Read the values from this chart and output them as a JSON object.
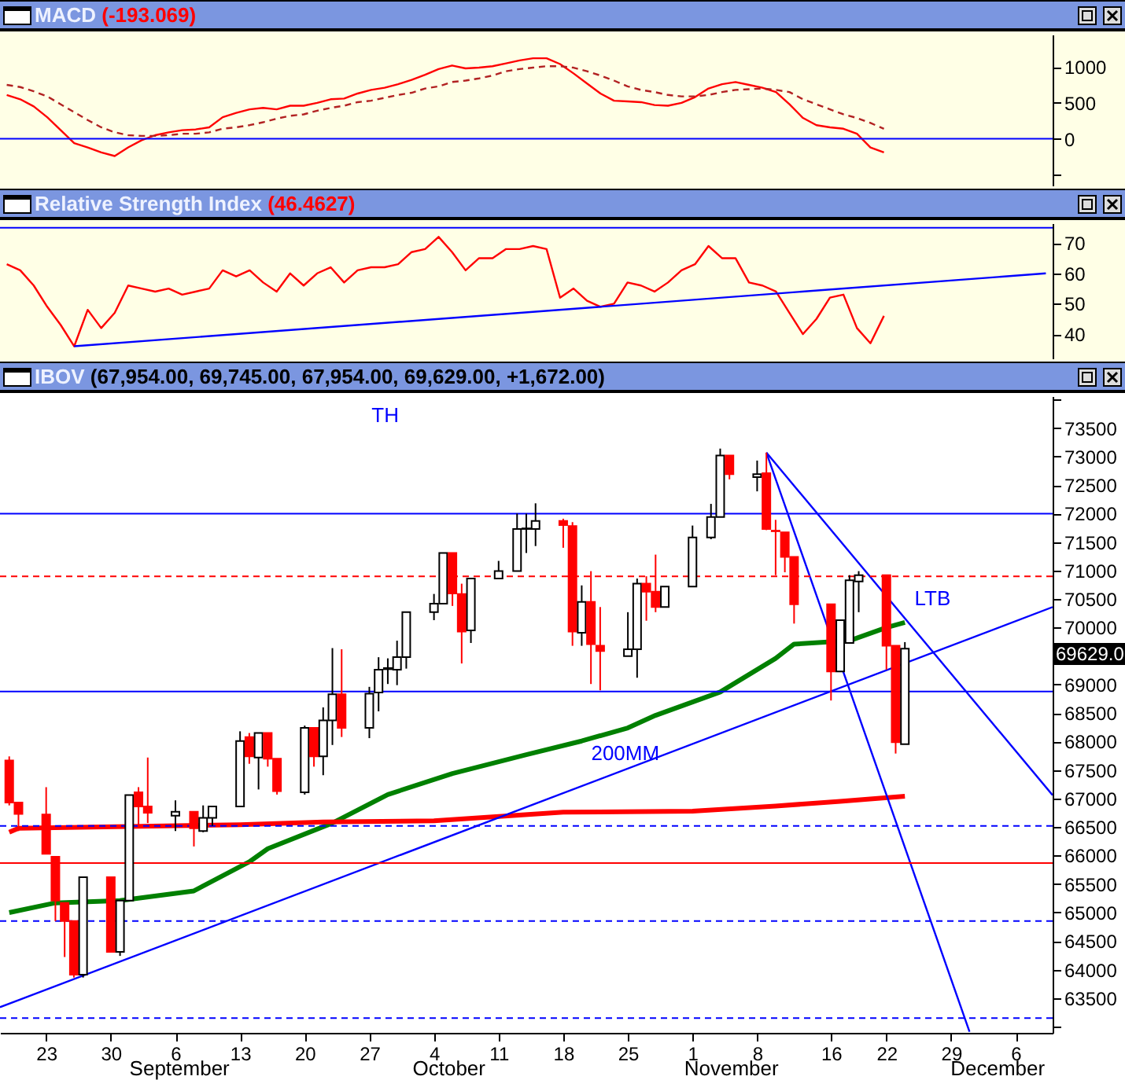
{
  "chart_data": [
    {
      "type": "line",
      "title": "MACD",
      "subtitle": "(-193.069)",
      "ylim": [
        -650,
        1450
      ],
      "yticks": [
        {
          "value": -500,
          "label": null
        },
        0,
        500,
        1000
      ],
      "tick_labels": "y",
      "ref_lines": [
        {
          "axis": "y",
          "value": 0,
          "color": "#0000ff"
        }
      ],
      "categories": [
        null,
        null,
        null,
        null,
        null,
        null,
        null,
        null,
        null,
        null,
        null,
        null,
        null,
        null,
        null,
        null,
        null,
        null,
        null,
        null,
        null,
        null,
        null,
        null,
        null,
        null,
        null,
        null,
        null,
        null,
        null,
        null,
        null,
        null,
        null,
        null,
        null,
        null,
        null,
        null,
        null,
        null,
        null,
        null,
        null,
        null,
        null,
        null,
        null,
        null,
        null,
        null,
        null,
        null,
        null,
        null,
        null,
        null,
        null,
        null,
        null,
        null,
        null,
        null,
        null,
        null,
        null,
        null,
        null,
        null,
        null,
        null,
        null,
        null,
        null,
        null,
        null,
        null
      ],
      "series": [
        {
          "color": "#ff0000",
          "values": [
            610,
            550,
            450,
            300,
            120,
            -60,
            -120,
            -190,
            -240,
            -120,
            -20,
            50,
            90,
            120,
            130,
            160,
            300,
            360,
            410,
            430,
            410,
            460,
            460,
            500,
            550,
            560,
            630,
            680,
            710,
            760,
            820,
            890,
            970,
            1020,
            980,
            990,
            1010,
            1050,
            1090,
            1120,
            1120,
            1040,
            910,
            770,
            630,
            530,
            520,
            510,
            470,
            460,
            500,
            580,
            700,
            760,
            790,
            750,
            710,
            650,
            480,
            290,
            190,
            160,
            140,
            70,
            -120,
            -190,
            null,
            null,
            null,
            null,
            null,
            null,
            null,
            null,
            null,
            null,
            null,
            null
          ]
        },
        {
          "color": "#b22222",
          "line_style": "dashed",
          "values": [
            750,
            720,
            660,
            590,
            480,
            370,
            260,
            160,
            90,
            50,
            40,
            40,
            50,
            70,
            70,
            90,
            140,
            160,
            190,
            230,
            280,
            320,
            340,
            390,
            430,
            460,
            510,
            530,
            570,
            610,
            640,
            700,
            730,
            790,
            810,
            840,
            880,
            940,
            970,
            990,
            1010,
            1010,
            990,
            940,
            880,
            810,
            730,
            680,
            650,
            610,
            590,
            590,
            610,
            650,
            680,
            690,
            700,
            680,
            650,
            550,
            480,
            410,
            340,
            290,
            220,
            140,
            null,
            null,
            null,
            null,
            null,
            null,
            null,
            null,
            null,
            null,
            null,
            null
          ]
        }
      ]
    },
    {
      "type": "line",
      "title": "Relative Strength Index",
      "subtitle": "(46.4627)",
      "ylim": [
        32,
        76.5
      ],
      "yticks": [
        40,
        50,
        60,
        70
      ],
      "tick_labels": "y",
      "ref_lines": [
        {
          "axis": "y",
          "value": 75,
          "color": "#0000ff"
        }
      ],
      "categories": [
        null,
        null,
        null,
        null,
        null,
        null,
        null,
        null,
        null,
        null,
        null,
        null,
        null,
        null,
        null,
        null,
        null,
        null,
        null,
        null,
        null,
        null,
        null,
        null,
        null,
        null,
        null,
        null,
        null,
        null,
        null,
        null,
        null,
        null,
        null,
        null,
        null,
        null,
        null,
        null,
        null,
        null,
        null,
        null,
        null,
        null,
        null,
        null,
        null,
        null,
        null,
        null,
        null,
        null,
        null,
        null,
        null,
        null,
        null,
        null,
        null,
        null,
        null,
        null,
        null,
        null,
        null,
        null,
        null,
        null,
        null,
        null,
        null,
        null,
        null,
        null,
        null,
        null
      ],
      "series": [
        {
          "color": "#ff0000",
          "values": [
            63,
            61,
            56,
            49,
            43,
            36,
            48,
            42,
            47,
            56,
            55,
            54,
            55,
            53,
            54,
            55,
            61,
            59,
            61,
            57,
            54,
            60,
            56,
            60,
            62,
            57,
            61,
            62,
            62,
            63,
            67,
            68,
            72,
            67,
            61,
            65,
            65,
            68,
            68,
            69,
            68,
            52,
            55,
            51,
            49,
            50,
            57,
            56,
            54,
            57,
            61,
            63,
            69,
            65,
            65,
            57,
            56,
            54,
            47,
            40,
            45,
            52,
            53,
            42,
            37,
            46,
            null,
            null,
            null,
            null,
            null,
            null,
            null,
            null,
            null,
            null,
            null,
            null
          ]
        },
        {
          "color": "#0000ff",
          "values": [
            null,
            null,
            null,
            null,
            null,
            36,
            null,
            null,
            null,
            null,
            null,
            null,
            null,
            null,
            null,
            null,
            null,
            null,
            null,
            null,
            null,
            null,
            null,
            null,
            null,
            null,
            null,
            null,
            null,
            null,
            null,
            null,
            null,
            null,
            null,
            null,
            null,
            null,
            null,
            null,
            null,
            null,
            null,
            null,
            null,
            null,
            null,
            null,
            null,
            null,
            null,
            null,
            null,
            null,
            null,
            null,
            null,
            null,
            null,
            null,
            null,
            null,
            null,
            null,
            null,
            null,
            null,
            null,
            null,
            null,
            null,
            null,
            null,
            null,
            null,
            null,
            null,
            60
          ]
        }
      ]
    },
    {
      "type": "candlestick",
      "title": "IBOV",
      "subtitle": "(67,954.00, 69,745.00, 67,954.00, 69,629.00, +1,672.00)",
      "xlim": [
        "--08-18",
        "--12-10"
      ],
      "ylim": [
        62890,
        74060
      ],
      "xticks": [
        {
          "value": "--08-23",
          "label": "23"
        },
        {
          "value": "--08-30",
          "label": "30"
        },
        {
          "value": "--09-06",
          "label": "6"
        },
        {
          "value": "--09-13",
          "label": "13"
        },
        {
          "value": "--09-20",
          "label": "20"
        },
        {
          "value": "--09-27",
          "label": "27"
        },
        {
          "value": "--10-04",
          "label": "4"
        },
        {
          "value": "--10-11",
          "label": "11"
        },
        {
          "value": "--10-18",
          "label": "18"
        },
        {
          "value": "--10-25",
          "label": "25"
        },
        {
          "value": "--11-01",
          "label": "1"
        },
        {
          "value": "--11-08",
          "label": "8"
        },
        {
          "value": "--11-16",
          "label": "16"
        },
        {
          "value": "--11-22",
          "label": "22"
        },
        {
          "value": "--11-29",
          "label": "29"
        },
        {
          "value": "--12-06",
          "label": "6"
        }
      ],
      "yticks": [
        {
          "value": 63000,
          "label": null
        },
        63500,
        64000,
        64500,
        65000,
        65500,
        66000,
        66500,
        67000,
        67500,
        68000,
        68500,
        69000,
        {
          "value": 69500,
          "label": null
        },
        70000,
        70500,
        71000,
        71500,
        72000,
        72500,
        73000,
        73500,
        {
          "value": 74000,
          "label": null
        }
      ],
      "x": [
        "--08-19",
        "--08-20",
        "--08-23",
        "--08-24",
        "--08-25",
        "--08-26",
        "--08-27",
        "--08-30",
        "--08-31",
        "--09-01",
        "--09-02",
        "--09-03",
        "--09-06",
        "--09-08",
        "--09-09",
        "--09-10",
        "--09-13",
        "--09-14",
        "--09-15",
        "--09-16",
        "--09-17",
        "--09-20",
        "--09-21",
        "--09-22",
        "--09-23",
        "--09-24",
        "--09-27",
        "--09-28",
        "--09-29",
        "--09-30",
        "--10-01",
        "--10-04",
        "--10-05",
        "--10-06",
        "--10-07",
        "--10-08",
        "--10-11",
        "--10-13",
        "--10-14",
        "--10-15",
        "--10-18",
        "--10-19",
        "--10-20",
        "--10-21",
        "--10-22",
        "--10-25",
        "--10-26",
        "--10-27",
        "--10-28",
        "--10-29",
        "--11-01",
        "--11-03",
        "--11-04",
        "--11-05",
        "--11-08",
        "--11-09",
        "--11-10",
        "--11-11",
        "--11-12",
        "--11-16",
        "--11-17",
        "--11-18",
        "--11-19",
        "--11-22",
        "--11-23",
        "--11-24"
      ],
      "ohlc": [
        [
          67670,
          67740,
          66880,
          66930
        ],
        [
          66930,
          66930,
          66430,
          66730
        ],
        [
          66720,
          67200,
          66030,
          66030
        ],
        [
          65980,
          65980,
          64850,
          65210
        ],
        [
          65170,
          65170,
          64220,
          64850
        ],
        [
          64850,
          64850,
          63860,
          63910
        ],
        [
          63910,
          65620,
          63860,
          65620
        ],
        [
          65620,
          65620,
          64310,
          64310
        ],
        [
          64310,
          65210,
          64240,
          65210
        ],
        [
          65210,
          67060,
          65210,
          67060
        ],
        [
          67110,
          67200,
          66480,
          66860
        ],
        [
          66860,
          67720,
          66570,
          66750
        ],
        [
          66700,
          66970,
          66430,
          66770
        ],
        [
          66770,
          66770,
          66160,
          66480
        ],
        [
          66430,
          66880,
          66410,
          66660
        ],
        [
          66660,
          66860,
          66520,
          66860
        ],
        [
          66860,
          68180,
          66860,
          68010
        ],
        [
          68080,
          68150,
          67610,
          67740
        ],
        [
          67720,
          68150,
          67160,
          68150
        ],
        [
          68150,
          68150,
          67560,
          67700
        ],
        [
          67700,
          67700,
          67070,
          67130
        ],
        [
          67110,
          68280,
          67070,
          68240
        ],
        [
          68240,
          68240,
          67560,
          67740
        ],
        [
          67740,
          68600,
          67410,
          68370
        ],
        [
          68370,
          69640,
          67940,
          68830
        ],
        [
          68830,
          69620,
          68080,
          68240
        ],
        [
          68240,
          68960,
          68060,
          68840
        ],
        [
          68860,
          69480,
          68530,
          69260
        ],
        [
          69270,
          69460,
          69010,
          69290
        ],
        [
          69260,
          69770,
          68990,
          69480
        ],
        [
          69480,
          70270,
          69280,
          70270
        ],
        [
          70270,
          70590,
          70130,
          70420
        ],
        [
          70420,
          71310,
          70420,
          71310
        ],
        [
          71310,
          71310,
          70380,
          70600
        ],
        [
          70590,
          70770,
          69370,
          69930
        ],
        [
          69950,
          70860,
          69730,
          70860
        ],
        [
          70860,
          71170,
          70860,
          70990
        ],
        [
          70990,
          72000,
          70990,
          71730
        ],
        [
          71730,
          72000,
          71310,
          71740
        ],
        [
          71730,
          72180,
          71430,
          71870
        ],
        [
          71870,
          71910,
          71400,
          71800
        ],
        [
          71780,
          71850,
          69680,
          69930
        ],
        [
          69910,
          70740,
          69680,
          70450
        ],
        [
          70450,
          70990,
          69010,
          69710
        ],
        [
          69680,
          70360,
          68900,
          69590
        ],
        [
          69500,
          70270,
          69500,
          69620
        ],
        [
          69620,
          70860,
          69120,
          70770
        ],
        [
          70770,
          70900,
          70120,
          70630
        ],
        [
          70630,
          71280,
          70270,
          70360
        ],
        [
          70360,
          70720,
          70360,
          70720
        ],
        [
          70720,
          71790,
          70720,
          71580
        ],
        [
          71580,
          72170,
          71550,
          71940
        ],
        [
          71940,
          73140,
          71940,
          73020
        ],
        [
          73020,
          73020,
          72600,
          72690
        ],
        [
          72640,
          72930,
          72390,
          72690
        ],
        [
          72710,
          73070,
          71710,
          71730
        ],
        [
          71700,
          71890,
          70920,
          71690
        ],
        [
          71670,
          71670,
          70970,
          71240
        ],
        [
          71240,
          71240,
          70070,
          70410
        ],
        [
          70410,
          70410,
          68720,
          69230
        ],
        [
          69230,
          70130,
          69230,
          70130
        ],
        [
          69730,
          70920,
          69730,
          70830
        ],
        [
          70810,
          70990,
          70270,
          70920
        ],
        [
          70920,
          70920,
          69260,
          69680
        ],
        [
          69680,
          69680,
          67790,
          67990
        ],
        [
          67954,
          69745,
          67954,
          69629
        ]
      ],
      "colors": [
        "#ff0000",
        "#ff0000",
        "#ff0000",
        "#ff0000",
        "#ff0000",
        "#ff0000",
        "#ffffff",
        "#ff0000",
        "#ffffff",
        "#ffffff",
        "#ff0000",
        "#ff0000",
        "#ffffff",
        "#ff0000",
        "#ffffff",
        "#ffffff",
        "#ffffff",
        "#ff0000",
        "#ffffff",
        "#ff0000",
        "#ff0000",
        "#ffffff",
        "#ff0000",
        "#ffffff",
        "#ffffff",
        "#ff0000",
        "#ffffff",
        "#ffffff",
        "#ffffff",
        "#ffffff",
        "#ffffff",
        "#ffffff",
        "#ffffff",
        "#ff0000",
        "#ff0000",
        "#ffffff",
        "#ffffff",
        "#ffffff",
        "#ffffff",
        "#ffffff",
        "#ff0000",
        "#ff0000",
        "#ffffff",
        "#ff0000",
        "#ff0000",
        "#ffffff",
        "#ffffff",
        "#ff0000",
        "#ff0000",
        "#ffffff",
        "#ffffff",
        "#ffffff",
        "#ffffff",
        "#ff0000",
        "#ffffff",
        "#ff0000",
        "#ff0000",
        "#ff0000",
        "#ff0000",
        "#ff0000",
        "#ffffff",
        "#ffffff",
        "#ffffff",
        "#ff0000",
        "#ff0000",
        "#ffffff"
      ],
      "series": [
        {
          "type": "line",
          "color": "#008000",
          "x": [
            "--08-19",
            "--08-24",
            "--08-31",
            "--09-08",
            "--09-14",
            "--09-16",
            "--09-23",
            "--09-29",
            "--10-06",
            "--10-14",
            "--10-20",
            "--10-25",
            "--10-28",
            "--11-04",
            "--11-10",
            "--11-12",
            "--11-18",
            "--11-22",
            "--11-24"
          ],
          "values": [
            65000,
            65170,
            65210,
            65380,
            65890,
            66120,
            66570,
            67070,
            67440,
            67770,
            68010,
            68240,
            68460,
            68870,
            69460,
            69710,
            69770,
            70000,
            70090
          ]
        },
        {
          "type": "line",
          "color": "#ff0000",
          "x": [
            "--08-19",
            "--08-20",
            "--09-13",
            "--09-22",
            "--10-04",
            "--10-18",
            "--11-01",
            "--11-10",
            "--11-17",
            "--11-24"
          ],
          "values": [
            66410,
            66480,
            66540,
            66590,
            66610,
            66760,
            66780,
            66870,
            66950,
            67040
          ]
        },
        {
          "type": "line",
          "color": "#0000ff",
          "x": [
            "--08-18",
            "--12-10"
          ],
          "values": [
            63340,
            70360
          ]
        },
        {
          "type": "line",
          "color": "#0000ff",
          "x": [
            "--11-09",
            "--12-01"
          ],
          "values": [
            73070,
            62910
          ]
        },
        {
          "type": "line",
          "color": "#0000ff",
          "x": [
            "--11-09",
            "--12-10"
          ],
          "values": [
            73070,
            67060
          ]
        }
      ],
      "ref_lines": [
        {
          "axis": "y",
          "value": 72000,
          "color": "#0000ff"
        },
        {
          "axis": "y",
          "value": 70900,
          "color": "#ff0000",
          "line_style": "dashed"
        },
        {
          "axis": "y",
          "value": 68880,
          "color": "#0000ff"
        },
        {
          "axis": "y",
          "value": 66520,
          "color": "#0000ff",
          "line_style": "dashed"
        },
        {
          "axis": "y",
          "value": 65870,
          "color": "#ff0000"
        },
        {
          "axis": "y",
          "value": 64850,
          "color": "#0000ff",
          "line_style": "dashed"
        },
        {
          "axis": "y",
          "value": 63150,
          "color": "#0000ff",
          "line_style": "dashed"
        }
      ],
      "annotations": [
        "TH",
        "LTB",
        "200MM",
        "69629.0",
        "September",
        "October",
        "November",
        "December"
      ]
    }
  ]
}
